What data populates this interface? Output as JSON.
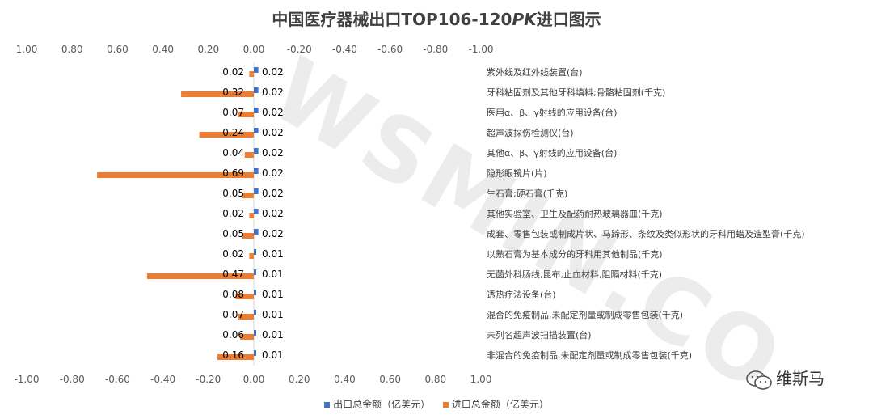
{
  "chart_data": {
    "type": "bar",
    "orientation": "horizontal",
    "title_parts": [
      "中国医疗器械出口TOP106-120",
      "PK",
      "进口图示"
    ],
    "top_axis_ticks": [
      "1.00",
      "0.80",
      "0.60",
      "0.40",
      "0.20",
      "0.00",
      "-0.20",
      "-0.40",
      "-0.60",
      "-0.80",
      "-1.00"
    ],
    "bottom_axis_ticks": [
      "-1.00",
      "-0.80",
      "-0.60",
      "-0.40",
      "-0.20",
      "0.00",
      "0.20",
      "0.40",
      "0.60",
      "0.80",
      "1.00"
    ],
    "xlim": [
      -1,
      1
    ],
    "categories": [
      "紫外线及红外线装置(台)",
      "牙科粘固剂及其他牙科填料;骨骼粘固剂(千克)",
      "医用α、β、γ射线的应用设备(台)",
      "超声波探伤检测仪(台)",
      "其他α、β、γ射线的应用设备(台)",
      "隐形眼镜片(片)",
      "生石膏;硬石膏(千克)",
      "其他实验室、卫生及配药耐热玻璃器皿(千克)",
      "成套、零售包装或制成片状、马蹄形、条纹及类似形状的牙科用蜡及造型膏(千克)",
      "以熟石膏为基本成分的牙科用其他制品(千克)",
      "无菌外科肠线,昆布,止血材料,阻隔材料(千克)",
      "透热疗法设备(台)",
      "混合的免疫制品,未配定剂量或制成零售包装(千克)",
      "未列名超声波扫描装置(台)",
      "非混合的免疫制品,未配定剂量或制成零售包装(千克)"
    ],
    "series": [
      {
        "name": "出口总金额（亿美元）",
        "color": "#4472C4",
        "values": [
          0.02,
          0.02,
          0.02,
          0.02,
          0.02,
          0.02,
          0.02,
          0.02,
          0.02,
          0.01,
          0.01,
          0.01,
          0.01,
          0.01,
          0.01
        ],
        "labels": [
          "0.02",
          "0.02",
          "0.02",
          "0.02",
          "0.02",
          "0.02",
          "0.02",
          "0.02",
          "0.02",
          "0.01",
          "0.01",
          "0.01",
          "0.01",
          "0.01",
          "0.01"
        ]
      },
      {
        "name": "进口总金额（亿美元）",
        "color": "#ED7D31",
        "values": [
          0.02,
          0.32,
          0.07,
          0.24,
          0.04,
          0.69,
          0.05,
          0.02,
          0.05,
          0.02,
          0.47,
          0.08,
          0.07,
          0.06,
          0.16
        ],
        "labels": [
          "0.02",
          "0.32",
          "0.07",
          "0.24",
          "0.04",
          "0.69",
          "0.05",
          "0.02",
          "0.05",
          "0.02",
          "0.47",
          "0.08",
          "0.07",
          "0.06",
          "0.16"
        ]
      }
    ],
    "legend_position": "bottom",
    "grid": false
  },
  "watermark": "WSMIN.CO",
  "logo": {
    "icon": "wechat-icon",
    "text": "维斯马"
  }
}
